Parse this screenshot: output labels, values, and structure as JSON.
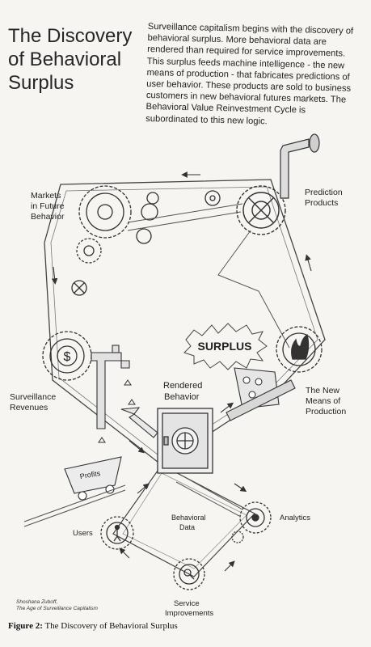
{
  "title": "The Discovery of Behavioral Surplus",
  "intro": "Surveillance capitalism begins with the discovery of behavioral surplus. More behavioral data are rendered than required for service improvements. This surplus feeds machine intelligence - the new means of production - that fabricates predictions of user behavior. These products are sold to business customers in new behavioral futures markets. The Behavioral Value Reinvestment Cycle is subordinated to this new logic.",
  "nodes": {
    "markets": [
      "Markets",
      "in Future",
      "Behavior"
    ],
    "prediction": [
      "Prediction",
      "Products"
    ],
    "surplus": "SURPLUS",
    "rendered": [
      "Rendered",
      "Behavior"
    ],
    "means": [
      "The New",
      "Means of",
      "Production"
    ],
    "revenues": [
      "Surveillance",
      "Revenues"
    ],
    "profits": "Profits",
    "dollar": "$",
    "users": "Users",
    "behavioral_data": [
      "Behavioral",
      "Data"
    ],
    "analytics": "Analytics",
    "service": [
      "Service",
      "Improvements"
    ]
  },
  "credit": [
    "Shoshana Zuboff,",
    "The Age of Surveillance Capitalism"
  ],
  "caption": {
    "label": "Figure 2:",
    "text": "The Discovery of Behavioral Surplus"
  }
}
